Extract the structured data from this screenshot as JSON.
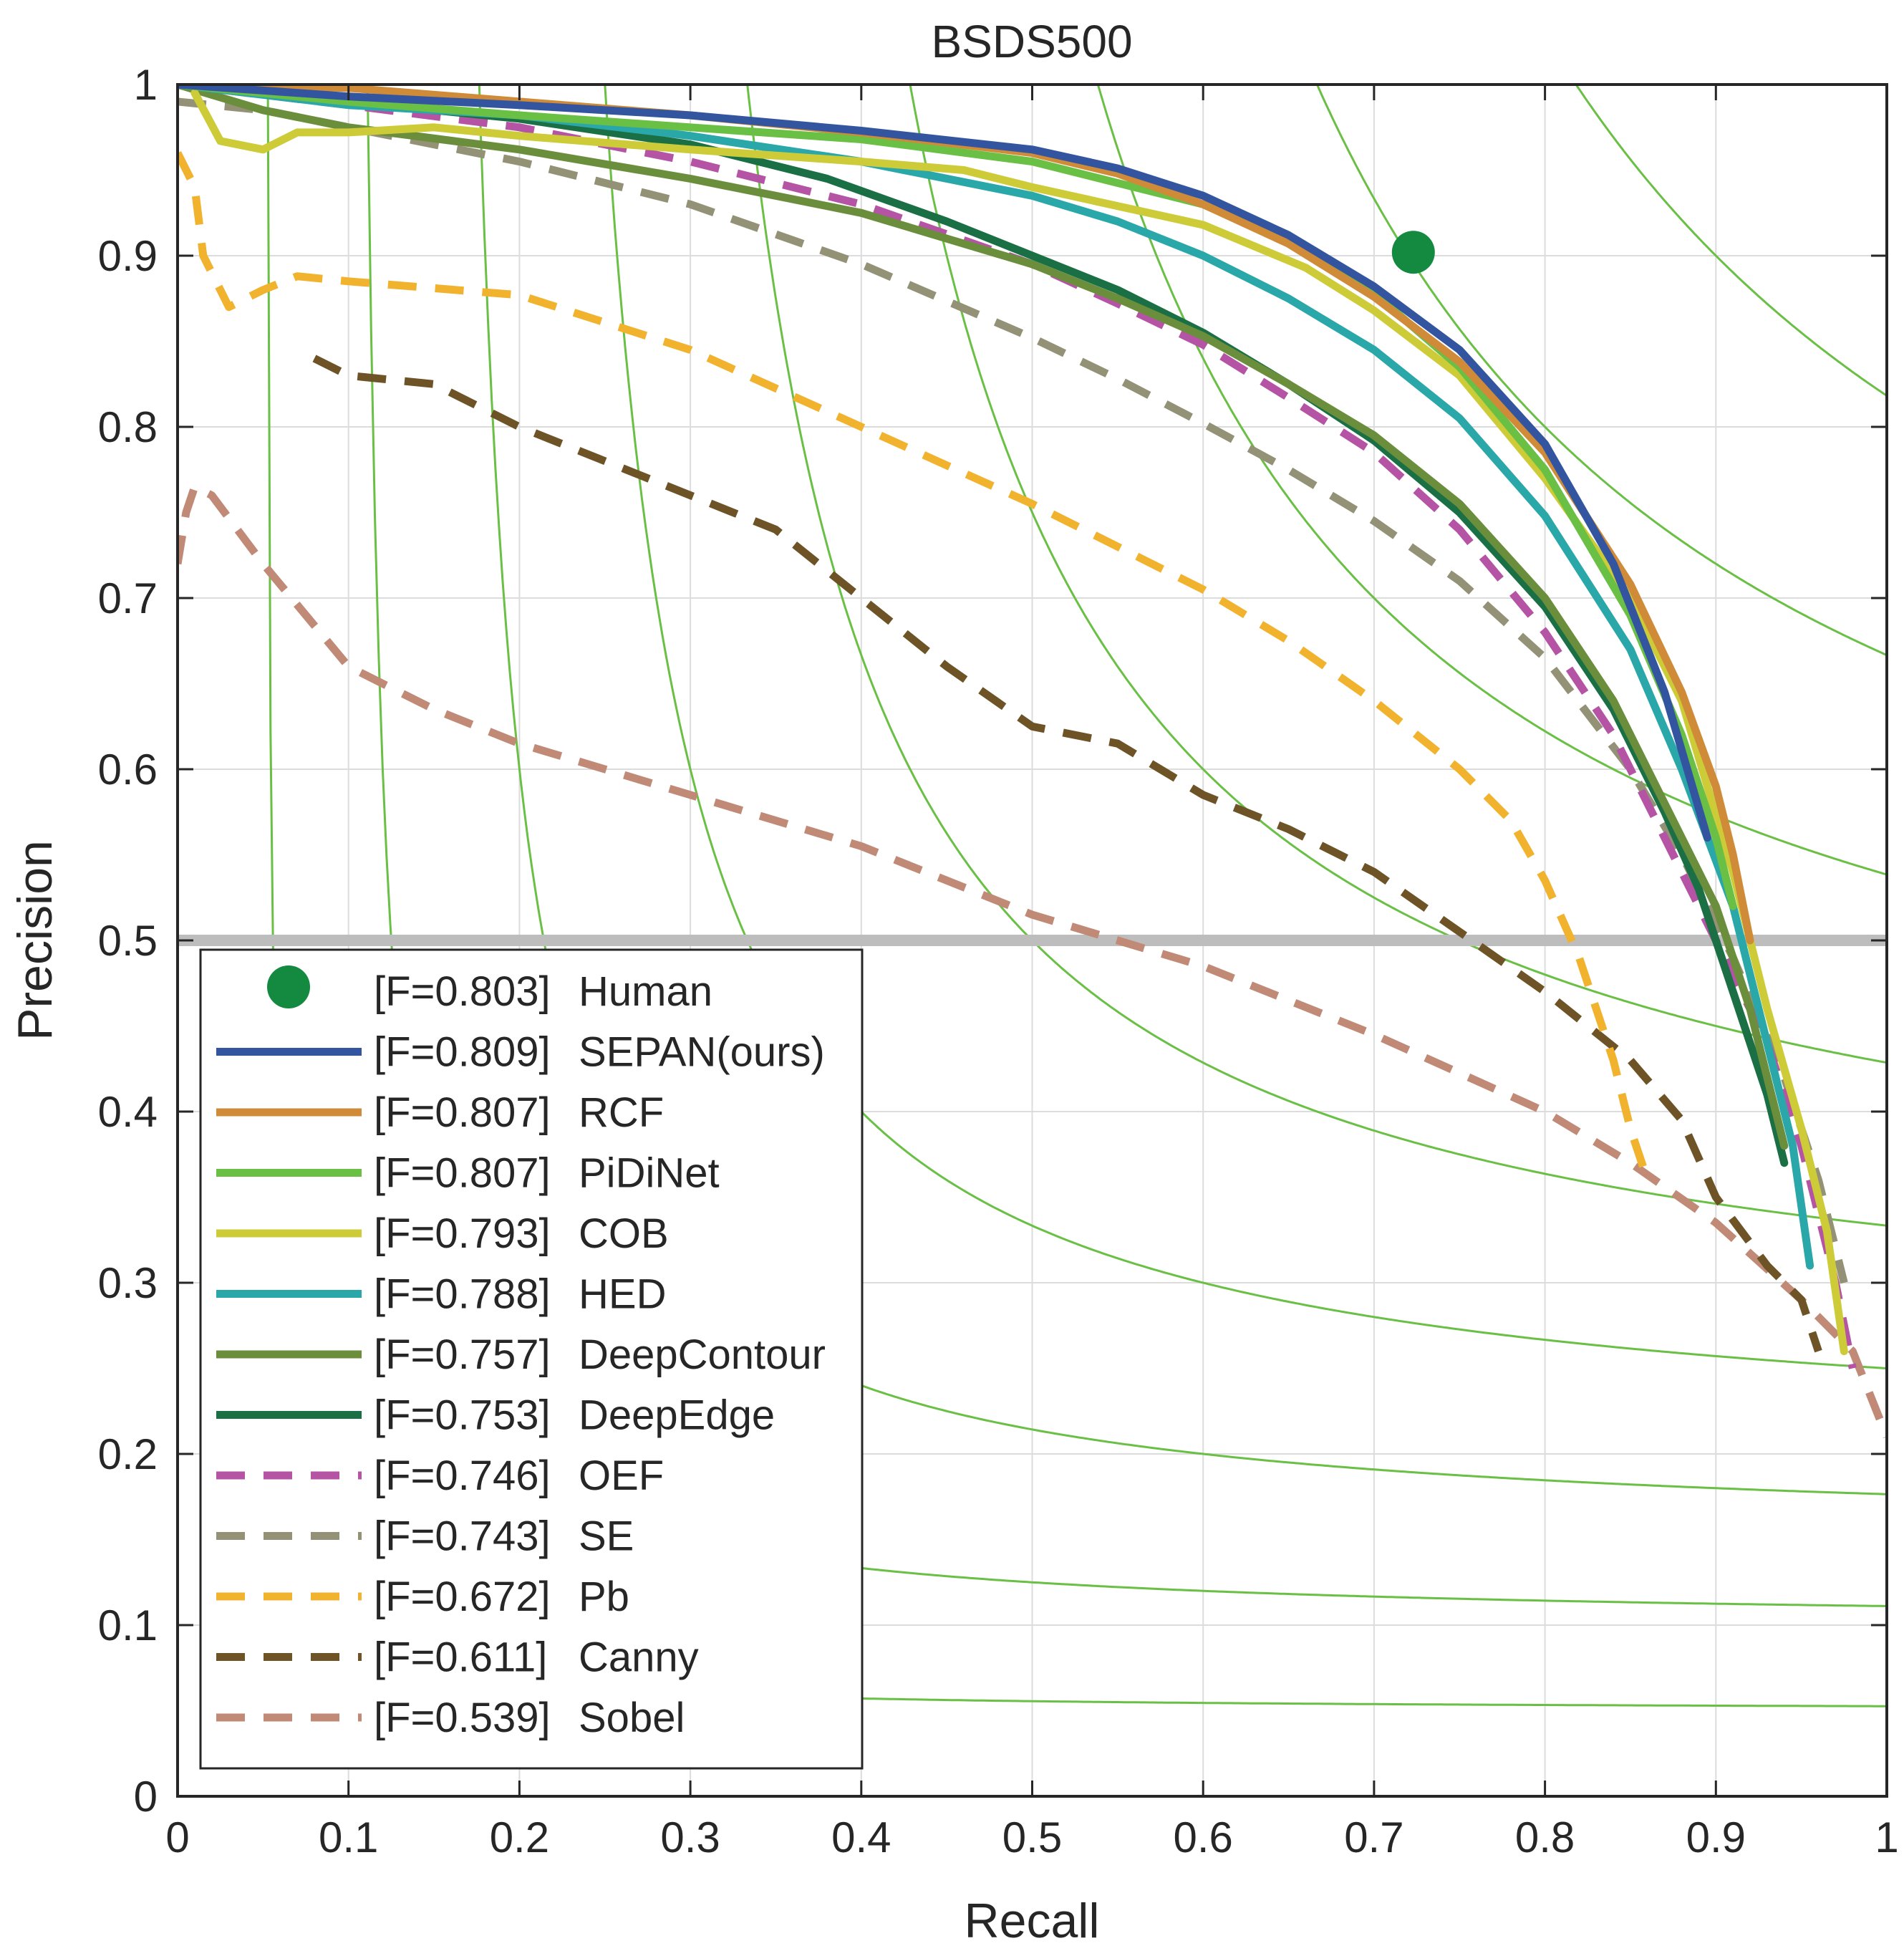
{
  "chart_data": {
    "type": "line",
    "title": "BSDS500",
    "xlabel": "Recall",
    "ylabel": "Precision",
    "xlim": [
      0,
      1
    ],
    "ylim": [
      0,
      1
    ],
    "xticks": [
      "0",
      "0.1",
      "0.2",
      "0.3",
      "0.4",
      "0.5",
      "0.6",
      "0.7",
      "0.8",
      "0.9",
      "1"
    ],
    "yticks": [
      "0",
      "0.1",
      "0.2",
      "0.3",
      "0.4",
      "0.5",
      "0.6",
      "0.7",
      "0.8",
      "0.9",
      "1"
    ],
    "grid": true,
    "reference_line": {
      "y": 0.5,
      "color": "#bdbdbd"
    },
    "iso_f_color": "#6abf45",
    "iso_f_values": [
      0.1,
      0.2,
      0.3,
      0.4,
      0.5,
      0.6,
      0.7,
      0.8,
      0.9
    ],
    "legend_position": "bottom-left",
    "human": {
      "label": "[F=0.803]",
      "name": "Human",
      "recall": 0.723,
      "precision": 0.902,
      "color": "#138a3f"
    },
    "series": [
      {
        "label": "[F=0.809]",
        "name": "SEPAN(ours)",
        "color": "#3355a0",
        "dashed": false,
        "points": [
          [
            0.0,
            1.0
          ],
          [
            0.1,
            0.993
          ],
          [
            0.2,
            0.988
          ],
          [
            0.3,
            0.982
          ],
          [
            0.4,
            0.973
          ],
          [
            0.5,
            0.962
          ],
          [
            0.55,
            0.951
          ],
          [
            0.6,
            0.935
          ],
          [
            0.65,
            0.912
          ],
          [
            0.7,
            0.882
          ],
          [
            0.75,
            0.845
          ],
          [
            0.8,
            0.79
          ],
          [
            0.84,
            0.72
          ],
          [
            0.87,
            0.645
          ],
          [
            0.895,
            0.56
          ]
        ]
      },
      {
        "label": "[F=0.807]",
        "name": "RCF",
        "color": "#cf8b37",
        "dashed": false,
        "points": [
          [
            0.0,
            1.0
          ],
          [
            0.1,
            0.998
          ],
          [
            0.2,
            0.99
          ],
          [
            0.3,
            0.982
          ],
          [
            0.4,
            0.972
          ],
          [
            0.5,
            0.96
          ],
          [
            0.55,
            0.948
          ],
          [
            0.6,
            0.93
          ],
          [
            0.65,
            0.907
          ],
          [
            0.7,
            0.876
          ],
          [
            0.75,
            0.838
          ],
          [
            0.8,
            0.785
          ],
          [
            0.85,
            0.708
          ],
          [
            0.88,
            0.645
          ],
          [
            0.9,
            0.59
          ],
          [
            0.91,
            0.55
          ],
          [
            0.92,
            0.5
          ]
        ]
      },
      {
        "label": "[F=0.807]",
        "name": "PiDiNet",
        "color": "#6abf45",
        "dashed": false,
        "points": [
          [
            0.0,
            1.0
          ],
          [
            0.1,
            0.99
          ],
          [
            0.2,
            0.982
          ],
          [
            0.3,
            0.975
          ],
          [
            0.4,
            0.968
          ],
          [
            0.5,
            0.955
          ],
          [
            0.6,
            0.93
          ],
          [
            0.65,
            0.908
          ],
          [
            0.7,
            0.878
          ],
          [
            0.75,
            0.835
          ],
          [
            0.8,
            0.775
          ],
          [
            0.85,
            0.69
          ],
          [
            0.88,
            0.62
          ],
          [
            0.9,
            0.56
          ],
          [
            0.91,
            0.52
          ]
        ]
      },
      {
        "label": "[F=0.793]",
        "name": "COB",
        "color": "#cdcc38",
        "dashed": false,
        "points": [
          [
            0.01,
            0.995
          ],
          [
            0.025,
            0.967
          ],
          [
            0.05,
            0.962
          ],
          [
            0.07,
            0.972
          ],
          [
            0.1,
            0.972
          ],
          [
            0.15,
            0.975
          ],
          [
            0.2,
            0.97
          ],
          [
            0.3,
            0.962
          ],
          [
            0.4,
            0.955
          ],
          [
            0.46,
            0.95
          ],
          [
            0.5,
            0.94
          ],
          [
            0.6,
            0.918
          ],
          [
            0.66,
            0.893
          ],
          [
            0.7,
            0.868
          ],
          [
            0.75,
            0.83
          ],
          [
            0.8,
            0.77
          ],
          [
            0.85,
            0.7
          ],
          [
            0.88,
            0.64
          ],
          [
            0.91,
            0.54
          ],
          [
            0.93,
            0.46
          ],
          [
            0.95,
            0.39
          ],
          [
            0.965,
            0.33
          ],
          [
            0.975,
            0.26
          ]
        ]
      },
      {
        "label": "[F=0.788]",
        "name": "HED",
        "color": "#2aa7a9",
        "dashed": false,
        "points": [
          [
            0.0,
            1.0
          ],
          [
            0.1,
            0.988
          ],
          [
            0.2,
            0.982
          ],
          [
            0.3,
            0.97
          ],
          [
            0.4,
            0.955
          ],
          [
            0.5,
            0.935
          ],
          [
            0.55,
            0.92
          ],
          [
            0.6,
            0.9
          ],
          [
            0.65,
            0.875
          ],
          [
            0.7,
            0.845
          ],
          [
            0.75,
            0.805
          ],
          [
            0.8,
            0.748
          ],
          [
            0.85,
            0.67
          ],
          [
            0.88,
            0.6
          ],
          [
            0.91,
            0.52
          ],
          [
            0.93,
            0.44
          ],
          [
            0.945,
            0.38
          ],
          [
            0.955,
            0.31
          ]
        ]
      },
      {
        "label": "[F=0.757]",
        "name": "DeepContour",
        "color": "#6b8e3c",
        "dashed": false,
        "points": [
          [
            0.0,
            1.0
          ],
          [
            0.05,
            0.985
          ],
          [
            0.1,
            0.975
          ],
          [
            0.2,
            0.962
          ],
          [
            0.3,
            0.945
          ],
          [
            0.4,
            0.925
          ],
          [
            0.5,
            0.895
          ],
          [
            0.55,
            0.875
          ],
          [
            0.6,
            0.853
          ],
          [
            0.65,
            0.825
          ],
          [
            0.7,
            0.795
          ],
          [
            0.75,
            0.755
          ],
          [
            0.8,
            0.7
          ],
          [
            0.84,
            0.64
          ],
          [
            0.87,
            0.58
          ],
          [
            0.9,
            0.52
          ],
          [
            0.92,
            0.46
          ],
          [
            0.94,
            0.38
          ]
        ]
      },
      {
        "label": "[F=0.753]",
        "name": "DeepEdge",
        "color": "#1a7044",
        "dashed": false,
        "points": [
          [
            0.0,
            1.0
          ],
          [
            0.1,
            0.99
          ],
          [
            0.2,
            0.98
          ],
          [
            0.3,
            0.965
          ],
          [
            0.38,
            0.945
          ],
          [
            0.45,
            0.92
          ],
          [
            0.5,
            0.9
          ],
          [
            0.55,
            0.88
          ],
          [
            0.6,
            0.855
          ],
          [
            0.65,
            0.825
          ],
          [
            0.7,
            0.792
          ],
          [
            0.75,
            0.75
          ],
          [
            0.8,
            0.695
          ],
          [
            0.84,
            0.635
          ],
          [
            0.87,
            0.575
          ],
          [
            0.89,
            0.53
          ],
          [
            0.91,
            0.47
          ],
          [
            0.93,
            0.41
          ],
          [
            0.94,
            0.37
          ]
        ]
      },
      {
        "label": "[F=0.746]",
        "name": "OEF",
        "color": "#b553a4",
        "dashed": true,
        "points": [
          [
            0.0,
            1.0
          ],
          [
            0.1,
            0.988
          ],
          [
            0.2,
            0.975
          ],
          [
            0.3,
            0.955
          ],
          [
            0.4,
            0.93
          ],
          [
            0.5,
            0.895
          ],
          [
            0.55,
            0.872
          ],
          [
            0.6,
            0.848
          ],
          [
            0.65,
            0.817
          ],
          [
            0.7,
            0.785
          ],
          [
            0.75,
            0.74
          ],
          [
            0.8,
            0.68
          ],
          [
            0.84,
            0.62
          ],
          [
            0.87,
            0.56
          ],
          [
            0.9,
            0.5
          ],
          [
            0.93,
            0.44
          ],
          [
            0.95,
            0.38
          ],
          [
            0.97,
            0.3
          ],
          [
            0.98,
            0.25
          ]
        ]
      },
      {
        "label": "[F=0.743]",
        "name": "SE",
        "color": "#939176",
        "dashed": true,
        "points": [
          [
            0.0,
            0.99
          ],
          [
            0.05,
            0.985
          ],
          [
            0.1,
            0.975
          ],
          [
            0.2,
            0.955
          ],
          [
            0.3,
            0.93
          ],
          [
            0.4,
            0.895
          ],
          [
            0.5,
            0.852
          ],
          [
            0.55,
            0.828
          ],
          [
            0.6,
            0.802
          ],
          [
            0.65,
            0.775
          ],
          [
            0.7,
            0.745
          ],
          [
            0.75,
            0.71
          ],
          [
            0.8,
            0.665
          ],
          [
            0.85,
            0.6
          ],
          [
            0.88,
            0.55
          ],
          [
            0.91,
            0.49
          ],
          [
            0.94,
            0.42
          ],
          [
            0.96,
            0.36
          ],
          [
            0.975,
            0.3
          ]
        ]
      },
      {
        "label": "[F=0.672]",
        "name": "Pb",
        "color": "#f1b22e",
        "dashed": true,
        "points": [
          [
            0.0,
            0.96
          ],
          [
            0.01,
            0.94
          ],
          [
            0.015,
            0.9
          ],
          [
            0.03,
            0.87
          ],
          [
            0.05,
            0.88
          ],
          [
            0.07,
            0.888
          ],
          [
            0.1,
            0.885
          ],
          [
            0.2,
            0.877
          ],
          [
            0.3,
            0.845
          ],
          [
            0.4,
            0.8
          ],
          [
            0.5,
            0.755
          ],
          [
            0.55,
            0.73
          ],
          [
            0.6,
            0.705
          ],
          [
            0.65,
            0.675
          ],
          [
            0.7,
            0.64
          ],
          [
            0.75,
            0.6
          ],
          [
            0.78,
            0.57
          ],
          [
            0.8,
            0.535
          ],
          [
            0.82,
            0.49
          ],
          [
            0.84,
            0.43
          ],
          [
            0.85,
            0.39
          ],
          [
            0.86,
            0.36
          ]
        ]
      },
      {
        "label": "[F=0.611]",
        "name": "Canny",
        "color": "#6e5327",
        "dashed": true,
        "points": [
          [
            0.08,
            0.84
          ],
          [
            0.1,
            0.83
          ],
          [
            0.15,
            0.825
          ],
          [
            0.2,
            0.8
          ],
          [
            0.25,
            0.78
          ],
          [
            0.3,
            0.76
          ],
          [
            0.35,
            0.74
          ],
          [
            0.4,
            0.7
          ],
          [
            0.45,
            0.66
          ],
          [
            0.5,
            0.625
          ],
          [
            0.55,
            0.615
          ],
          [
            0.6,
            0.585
          ],
          [
            0.65,
            0.565
          ],
          [
            0.7,
            0.54
          ],
          [
            0.75,
            0.505
          ],
          [
            0.8,
            0.47
          ],
          [
            0.85,
            0.43
          ],
          [
            0.88,
            0.395
          ],
          [
            0.9,
            0.35
          ],
          [
            0.93,
            0.31
          ],
          [
            0.95,
            0.29
          ],
          [
            0.96,
            0.26
          ]
        ]
      },
      {
        "label": "[F=0.539]",
        "name": "Sobel",
        "color": "#c08a77",
        "dashed": true,
        "points": [
          [
            0.0,
            0.72
          ],
          [
            0.005,
            0.75
          ],
          [
            0.01,
            0.765
          ],
          [
            0.02,
            0.76
          ],
          [
            0.05,
            0.72
          ],
          [
            0.1,
            0.66
          ],
          [
            0.15,
            0.635
          ],
          [
            0.2,
            0.615
          ],
          [
            0.3,
            0.585
          ],
          [
            0.4,
            0.555
          ],
          [
            0.5,
            0.515
          ],
          [
            0.6,
            0.485
          ],
          [
            0.7,
            0.445
          ],
          [
            0.8,
            0.4
          ],
          [
            0.85,
            0.37
          ],
          [
            0.9,
            0.335
          ],
          [
            0.95,
            0.29
          ],
          [
            0.98,
            0.26
          ],
          [
            1.0,
            0.21
          ]
        ]
      }
    ]
  }
}
